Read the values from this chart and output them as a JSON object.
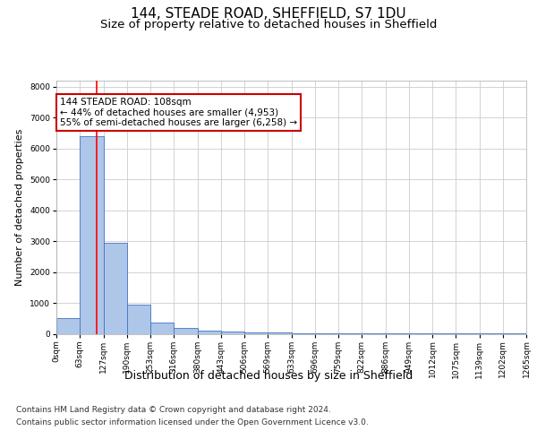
{
  "title1": "144, STEADE ROAD, SHEFFIELD, S7 1DU",
  "title2": "Size of property relative to detached houses in Sheffield",
  "xlabel": "Distribution of detached houses by size in Sheffield",
  "ylabel": "Number of detached properties",
  "bar_values": [
    500,
    6400,
    2950,
    950,
    350,
    175,
    100,
    75,
    50,
    30,
    20,
    15,
    10,
    8,
    6,
    5,
    4,
    3,
    2,
    2
  ],
  "bin_edges": [
    0,
    63,
    127,
    190,
    253,
    316,
    380,
    443,
    506,
    569,
    633,
    696,
    759,
    822,
    886,
    949,
    1012,
    1075,
    1139,
    1202,
    1265
  ],
  "x_tick_labels": [
    "0sqm",
    "63sqm",
    "127sqm",
    "190sqm",
    "253sqm",
    "316sqm",
    "380sqm",
    "443sqm",
    "506sqm",
    "569sqm",
    "633sqm",
    "696sqm",
    "759sqm",
    "822sqm",
    "886sqm",
    "949sqm",
    "1012sqm",
    "1075sqm",
    "1139sqm",
    "1202sqm",
    "1265sqm"
  ],
  "bar_color": "#aec6e8",
  "bar_edge_color": "#4472c4",
  "red_line_x": 108,
  "annotation_text": "144 STEADE ROAD: 108sqm\n← 44% of detached houses are smaller (4,953)\n55% of semi-detached houses are larger (6,258) →",
  "annotation_box_color": "#ffffff",
  "annotation_box_edge": "#cc0000",
  "ylim": [
    0,
    8200
  ],
  "yticks": [
    0,
    1000,
    2000,
    3000,
    4000,
    5000,
    6000,
    7000,
    8000
  ],
  "footer1": "Contains HM Land Registry data © Crown copyright and database right 2024.",
  "footer2": "Contains public sector information licensed under the Open Government Licence v3.0.",
  "bg_color": "#ffffff",
  "grid_color": "#cccccc",
  "title1_fontsize": 11,
  "title2_fontsize": 9.5,
  "tick_fontsize": 6.5,
  "ylabel_fontsize": 8,
  "xlabel_fontsize": 9,
  "footer_fontsize": 6.5,
  "annot_fontsize": 7.5
}
